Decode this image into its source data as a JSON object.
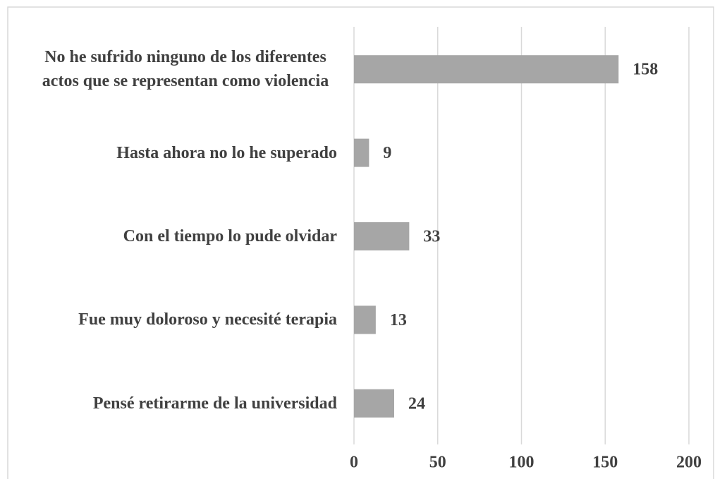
{
  "chart_data": {
    "type": "barh",
    "categories": [
      "No he sufrido ninguno de los diferentes actos que se representan como violencia",
      "Hasta ahora no lo he superado",
      "Con el tiempo lo pude olvidar",
      "Fue muy doloroso y necesité terapia",
      "Pensé retirarme de la universidad"
    ],
    "values": [
      158,
      9,
      33,
      13,
      24
    ],
    "color": "#a6a6a6",
    "xlim": [
      0,
      200
    ],
    "xticks": [
      0,
      50,
      100,
      150,
      200
    ],
    "grid": true
  }
}
